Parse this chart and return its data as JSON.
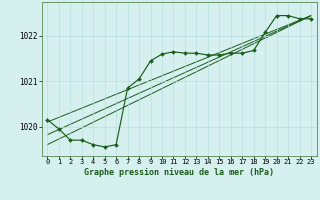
{
  "title": "Graphe pression niveau de la mer (hPa)",
  "bg_color": "#d6f0f0",
  "line_color": "#1a5c1a",
  "marker_color": "#1a5c1a",
  "ylim": [
    1019.35,
    1022.75
  ],
  "xlim": [
    -0.5,
    23.5
  ],
  "yticks": [
    1020,
    1021,
    1022
  ],
  "xticks": [
    0,
    1,
    2,
    3,
    4,
    5,
    6,
    7,
    8,
    9,
    10,
    11,
    12,
    13,
    14,
    15,
    16,
    17,
    18,
    19,
    20,
    21,
    22,
    23
  ],
  "hours": [
    0,
    1,
    2,
    3,
    4,
    5,
    6,
    7,
    8,
    9,
    10,
    11,
    12,
    13,
    14,
    15,
    16,
    17,
    18,
    19,
    20,
    21,
    22,
    23
  ],
  "pressure": [
    1020.15,
    1019.95,
    1019.7,
    1019.7,
    1019.6,
    1019.55,
    1019.6,
    1020.85,
    1021.05,
    1021.45,
    1021.6,
    1021.65,
    1021.62,
    1021.62,
    1021.58,
    1021.58,
    1021.62,
    1021.62,
    1021.68,
    1022.08,
    1022.45,
    1022.45,
    1022.38,
    1022.38
  ],
  "line1_x": [
    0,
    23
  ],
  "line1_y": [
    1019.82,
    1022.45
  ],
  "line2_x": [
    0,
    23
  ],
  "line2_y": [
    1020.1,
    1022.45
  ],
  "line3_x": [
    0,
    23
  ],
  "line3_y": [
    1019.6,
    1022.45
  ],
  "grid_color": "#b8dede",
  "grid_minor_color": "#cce8e8"
}
